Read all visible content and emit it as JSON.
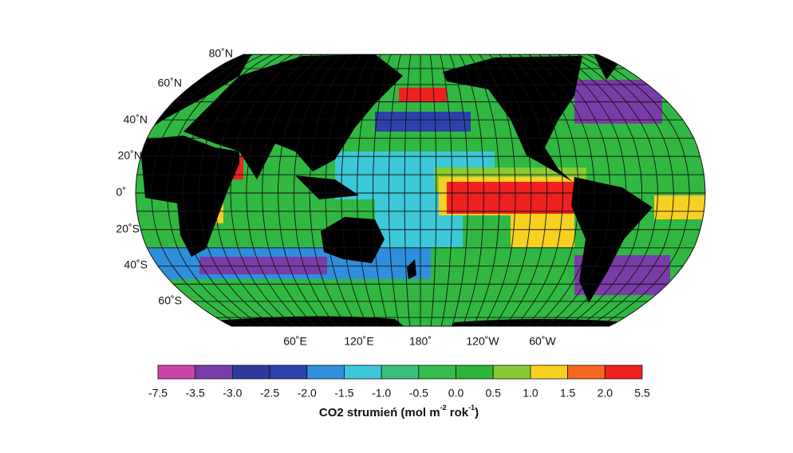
{
  "map": {
    "lat_labels": [
      "80˚N",
      "60˚N",
      "40˚N",
      "20˚N",
      "0˚",
      "20˚S",
      "40˚S",
      "60˚S"
    ],
    "lon_labels": [
      "60˚E",
      "120˚E",
      "180˚",
      "120˚W",
      "60˚W"
    ]
  },
  "colorbar": {
    "colors": [
      "#cc44aa",
      "#7a3ca8",
      "#2e3a9e",
      "#2c42aa",
      "#2f8fdc",
      "#3cc8d8",
      "#38c07a",
      "#34bc4c",
      "#2eb438",
      "#86cc30",
      "#f8d020",
      "#f86820",
      "#ee2020"
    ],
    "labels": [
      "-7.5",
      "-3.5",
      "-3.0",
      "-2.5",
      "-2.0",
      "-1.5",
      "-1.0",
      "-0.5",
      "0.0",
      "0.5",
      "1.0",
      "1.5",
      "2.0",
      "5.5"
    ],
    "title": [
      "CO2 strumień (mol m",
      "-2",
      " rok",
      "-1",
      ")"
    ]
  }
}
